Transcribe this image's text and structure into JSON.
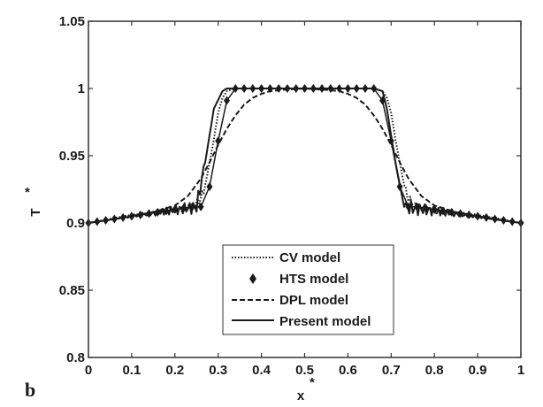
{
  "panel_label": "b",
  "chart_data": {
    "type": "line",
    "xlabel": "x",
    "xlabel_sup": "*",
    "ylabel": "T",
    "ylabel_sup": "*",
    "xlim": [
      0,
      1
    ],
    "ylim": [
      0.8,
      1.05
    ],
    "xticks": [
      0,
      0.1,
      0.2,
      0.3,
      0.4,
      0.5,
      0.6,
      0.7,
      0.8,
      0.9,
      1
    ],
    "xtick_labels": [
      "0",
      "0.1",
      "0.2",
      "0.3",
      "0.4",
      "0.5",
      "0.6",
      "0.7",
      "0.8",
      "0.9",
      "1"
    ],
    "yticks": [
      0.8,
      0.85,
      0.9,
      0.95,
      1,
      1.05
    ],
    "ytick_labels": [
      "0.8",
      "0.85",
      "0.9",
      "0.95",
      "1",
      "1.05"
    ],
    "grid": false,
    "legend_position": "bottom-center",
    "color": "#1a1a1a",
    "series": [
      {
        "name": "CV model",
        "style": "dotted",
        "x": [
          0,
          0.05,
          0.1,
          0.15,
          0.2,
          0.24,
          0.26,
          0.27,
          0.28,
          0.29,
          0.3,
          0.31,
          0.32,
          0.34,
          0.4,
          0.5,
          0.6,
          0.66,
          0.68,
          0.69,
          0.7,
          0.71,
          0.72,
          0.73,
          0.74,
          0.76,
          0.8,
          0.85,
          0.9,
          0.95,
          1
        ],
        "y": [
          0.9,
          0.903,
          0.906,
          0.908,
          0.91,
          0.912,
          0.918,
          0.928,
          0.945,
          0.962,
          0.982,
          0.993,
          0.998,
          1.0,
          1.0,
          1.0,
          1.0,
          1.0,
          0.998,
          0.993,
          0.982,
          0.962,
          0.945,
          0.928,
          0.918,
          0.912,
          0.91,
          0.908,
          0.906,
          0.903,
          0.9
        ]
      },
      {
        "name": "HTS model",
        "style": "markers",
        "x": [
          0,
          0.02,
          0.04,
          0.06,
          0.08,
          0.1,
          0.12,
          0.14,
          0.16,
          0.18,
          0.2,
          0.22,
          0.24,
          0.26,
          0.28,
          0.3,
          0.32,
          0.34,
          0.36,
          0.38,
          0.4,
          0.42,
          0.44,
          0.46,
          0.48,
          0.5,
          0.52,
          0.54,
          0.56,
          0.58,
          0.6,
          0.62,
          0.64,
          0.66,
          0.68,
          0.7,
          0.72,
          0.74,
          0.76,
          0.78,
          0.8,
          0.82,
          0.84,
          0.86,
          0.88,
          0.9,
          0.92,
          0.94,
          0.96,
          0.98,
          1
        ],
        "y": [
          0.9,
          0.901,
          0.902,
          0.903,
          0.904,
          0.905,
          0.906,
          0.907,
          0.908,
          0.909,
          0.91,
          0.911,
          0.912,
          0.912,
          0.927,
          0.961,
          0.991,
          1.0,
          1.0,
          1.0,
          1.0,
          1.0,
          1.0,
          1.0,
          1.0,
          1.0,
          1.0,
          1.0,
          1.0,
          1.0,
          1.0,
          1.0,
          1.0,
          1.0,
          0.991,
          0.961,
          0.927,
          0.912,
          0.912,
          0.911,
          0.91,
          0.909,
          0.908,
          0.907,
          0.906,
          0.905,
          0.904,
          0.903,
          0.902,
          0.901,
          0.9
        ]
      },
      {
        "name": "DPL model",
        "style": "dashed",
        "x": [
          0,
          0.1,
          0.15,
          0.2,
          0.23,
          0.26,
          0.28,
          0.3,
          0.32,
          0.34,
          0.36,
          0.38,
          0.4,
          0.42,
          0.45,
          0.5,
          0.55,
          0.58,
          0.6,
          0.62,
          0.64,
          0.66,
          0.68,
          0.7,
          0.72,
          0.74,
          0.77,
          0.8,
          0.85,
          0.9,
          1
        ],
        "y": [
          0.9,
          0.905,
          0.908,
          0.913,
          0.92,
          0.933,
          0.945,
          0.958,
          0.97,
          0.98,
          0.988,
          0.993,
          0.996,
          0.998,
          0.999,
          1.0,
          0.999,
          0.998,
          0.996,
          0.993,
          0.988,
          0.98,
          0.97,
          0.958,
          0.945,
          0.933,
          0.92,
          0.913,
          0.908,
          0.905,
          0.9
        ]
      },
      {
        "name": "Present model",
        "style": "solid",
        "x": [
          0,
          0.25,
          0.27,
          0.29,
          0.31,
          0.32,
          0.34,
          0.4,
          0.5,
          0.6,
          0.66,
          0.68,
          0.69,
          0.71,
          0.73,
          0.75,
          1
        ],
        "y": [
          0.9,
          0.912,
          0.945,
          0.985,
          0.998,
          1.0,
          1.0,
          1.0,
          1.0,
          1.0,
          1.0,
          0.998,
          0.985,
          0.945,
          0.912,
          0.911,
          0.9
        ]
      }
    ]
  }
}
